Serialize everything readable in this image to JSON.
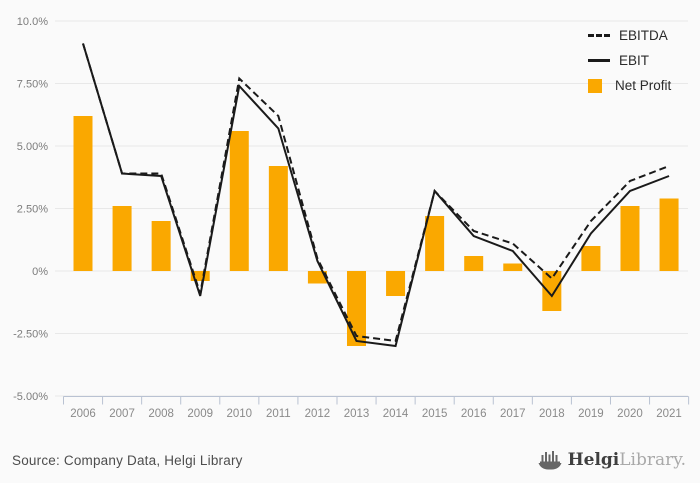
{
  "chart_data": {
    "type": "combo-bar-line",
    "categories": [
      "2006",
      "2007",
      "2008",
      "2009",
      "2010",
      "2011",
      "2012",
      "2013",
      "2014",
      "2015",
      "2016",
      "2017",
      "2018",
      "2019",
      "2020",
      "2021"
    ],
    "series": [
      {
        "name": "EBITDA",
        "type": "line",
        "style": "dashed",
        "color": "#1a1a1a",
        "values": [
          9.1,
          3.9,
          3.9,
          -0.9,
          7.7,
          6.2,
          0.5,
          -2.6,
          -2.8,
          3.2,
          1.6,
          1.1,
          -0.3,
          2.0,
          3.6,
          4.2
        ]
      },
      {
        "name": "EBIT",
        "type": "line",
        "style": "solid",
        "color": "#1a1a1a",
        "values": [
          9.1,
          3.9,
          3.8,
          -1.0,
          7.4,
          5.7,
          0.4,
          -2.8,
          -3.0,
          3.2,
          1.4,
          0.8,
          -1.0,
          1.5,
          3.2,
          3.8
        ]
      },
      {
        "name": "Net Profit",
        "type": "bar",
        "color": "#FAA800",
        "values": [
          6.2,
          2.6,
          2.0,
          -0.4,
          5.6,
          4.2,
          -0.5,
          -3.0,
          -1.0,
          2.2,
          0.6,
          0.3,
          -1.6,
          1.0,
          2.6,
          2.9
        ]
      }
    ],
    "y_axis": {
      "ticks": [
        {
          "value": 10,
          "label": "10.0%"
        },
        {
          "value": 7.5,
          "label": "7.50%"
        },
        {
          "value": 5,
          "label": "5.00%"
        },
        {
          "value": 2.5,
          "label": "2.50%"
        },
        {
          "value": 0,
          "label": "0%"
        },
        {
          "value": -2.5,
          "label": "-2.50%"
        },
        {
          "value": -5,
          "label": "-5.00%"
        }
      ],
      "ylim": [
        -5,
        10
      ]
    },
    "title": "",
    "xlabel": "",
    "ylabel": "",
    "grid": true,
    "legend_position": "top-right"
  },
  "legend": {
    "items": [
      {
        "label": "EBITDA",
        "swatch": "dashed-line"
      },
      {
        "label": "EBIT",
        "swatch": "solid-line"
      },
      {
        "label": "Net Profit",
        "swatch": "orange-square"
      }
    ]
  },
  "footer": {
    "source": "Source: Company Data, Helgi Library",
    "logo": {
      "bold": "Helgi",
      "light": "Library.",
      "icon": "viking-ship-bars-icon"
    }
  },
  "colors": {
    "accent_orange": "#FAA800",
    "line_black": "#1a1a1a",
    "grid": "#e8e8e8",
    "axis": "#b9c2d2",
    "tick_text": "#7c7c7c",
    "year_text": "#8a8a8a",
    "background": "#fafafa"
  }
}
